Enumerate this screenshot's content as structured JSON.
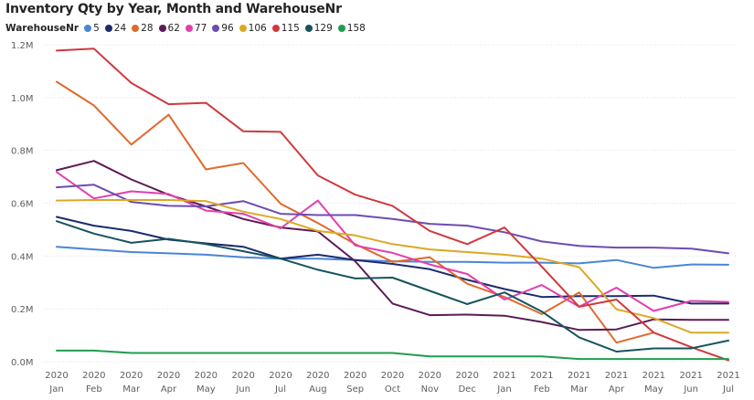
{
  "chart_data": {
    "type": "line",
    "title": "Inventory Qty by Year, Month and WarehouseNr",
    "legend_title": "WarehouseNr",
    "legend_position": "top-left",
    "y_ticks": [
      "0.0M",
      "0.2M",
      "0.4M",
      "0.6M",
      "0.8M",
      "1.0M",
      "1.2M"
    ],
    "ylim": [
      0,
      1200000
    ],
    "grid": true,
    "categories": [
      {
        "year": "2020",
        "month": "Jan"
      },
      {
        "year": "2020",
        "month": "Feb"
      },
      {
        "year": "2020",
        "month": "Mar"
      },
      {
        "year": "2020",
        "month": "Apr"
      },
      {
        "year": "2020",
        "month": "May"
      },
      {
        "year": "2020",
        "month": "Jun"
      },
      {
        "year": "2020",
        "month": "Jul"
      },
      {
        "year": "2020",
        "month": "Aug"
      },
      {
        "year": "2020",
        "month": "Sep"
      },
      {
        "year": "2020",
        "month": "Oct"
      },
      {
        "year": "2020",
        "month": "Nov"
      },
      {
        "year": "2020",
        "month": "Dec"
      },
      {
        "year": "2021",
        "month": "Jan"
      },
      {
        "year": "2021",
        "month": "Feb"
      },
      {
        "year": "2021",
        "month": "Mar"
      },
      {
        "year": "2021",
        "month": "Apr"
      },
      {
        "year": "2021",
        "month": "May"
      },
      {
        "year": "2021",
        "month": "Jun"
      },
      {
        "year": "2021",
        "month": "Jul"
      }
    ],
    "series": [
      {
        "name": "5",
        "color": "#4a85d6",
        "values": [
          435000,
          425000,
          415000,
          410000,
          405000,
          395000,
          390000,
          390000,
          385000,
          380000,
          378000,
          378000,
          375000,
          375000,
          372000,
          385000,
          355000,
          368000,
          367000
        ]
      },
      {
        "name": "24",
        "color": "#1a2c6b",
        "values": [
          548000,
          515000,
          495000,
          462000,
          448000,
          435000,
          390000,
          405000,
          385000,
          370000,
          350000,
          310000,
          275000,
          245000,
          248000,
          248000,
          250000,
          220000,
          220000
        ]
      },
      {
        "name": "28",
        "color": "#e06a2c",
        "values": [
          1060000,
          970000,
          822000,
          935000,
          728000,
          752000,
          598000,
          525000,
          445000,
          378000,
          395000,
          295000,
          245000,
          180000,
          262000,
          72000,
          110000,
          null,
          null
        ]
      },
      {
        "name": "62",
        "color": "#5b1b56",
        "values": [
          725000,
          760000,
          690000,
          632000,
          588000,
          540000,
          508000,
          493000,
          380000,
          220000,
          176000,
          178000,
          174000,
          150000,
          120000,
          122000,
          160000,
          158000,
          158000
        ]
      },
      {
        "name": "77",
        "color": "#e23fae",
        "values": [
          718000,
          618000,
          645000,
          635000,
          572000,
          560000,
          505000,
          610000,
          440000,
          412000,
          368000,
          332000,
          235000,
          290000,
          208000,
          280000,
          192000,
          230000,
          226000
        ]
      },
      {
        "name": "96",
        "color": "#6b4db3",
        "values": [
          660000,
          670000,
          605000,
          590000,
          588000,
          608000,
          560000,
          555000,
          555000,
          540000,
          522000,
          515000,
          490000,
          455000,
          438000,
          432000,
          432000,
          428000,
          410000
        ]
      },
      {
        "name": "106",
        "color": "#dca823",
        "values": [
          610000,
          612000,
          612000,
          612000,
          608000,
          568000,
          540000,
          495000,
          478000,
          445000,
          425000,
          415000,
          405000,
          390000,
          358000,
          198000,
          165000,
          110000,
          110000
        ]
      },
      {
        "name": "115",
        "color": "#d1383d",
        "values": [
          1178000,
          1185000,
          1055000,
          975000,
          980000,
          872000,
          870000,
          705000,
          632000,
          590000,
          495000,
          445000,
          508000,
          360000,
          208000,
          235000,
          110000,
          55000,
          5000
        ]
      },
      {
        "name": "129",
        "color": "#16545c",
        "values": [
          532000,
          485000,
          450000,
          465000,
          445000,
          418000,
          390000,
          348000,
          315000,
          318000,
          268000,
          218000,
          262000,
          190000,
          92000,
          38000,
          50000,
          50000,
          80000
        ]
      },
      {
        "name": "158",
        "color": "#1f9e4f",
        "values": [
          42000,
          42000,
          33000,
          33000,
          33000,
          33000,
          33000,
          33000,
          33000,
          33000,
          20000,
          20000,
          20000,
          20000,
          10000,
          10000,
          10000,
          10000,
          10000
        ]
      }
    ]
  }
}
